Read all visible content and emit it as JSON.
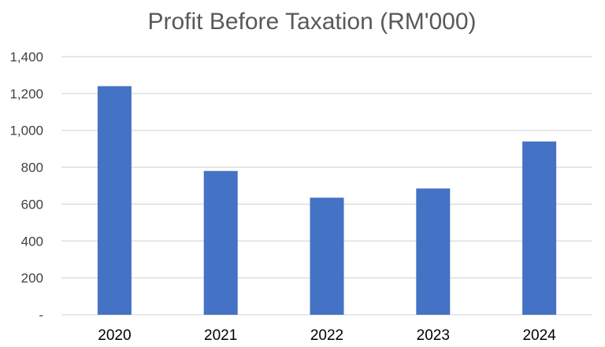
{
  "chart_data": {
    "type": "bar",
    "title": "Profit Before Taxation (RM'000)",
    "xlabel": "",
    "ylabel": "",
    "categories": [
      "2020",
      "2021",
      "2022",
      "2023",
      "2024"
    ],
    "series": [
      {
        "values": [
          1240,
          780,
          635,
          685,
          940
        ],
        "color": "#4472c4"
      }
    ],
    "ylim": [
      0,
      1400
    ],
    "yticks": [
      0,
      200,
      400,
      600,
      800,
      1000,
      1200,
      1400
    ],
    "ytick_labels": [
      "-",
      "200",
      "400",
      "600",
      "800",
      "1,000",
      "1,200",
      "1,400"
    ],
    "grid": true,
    "legend": "none"
  }
}
